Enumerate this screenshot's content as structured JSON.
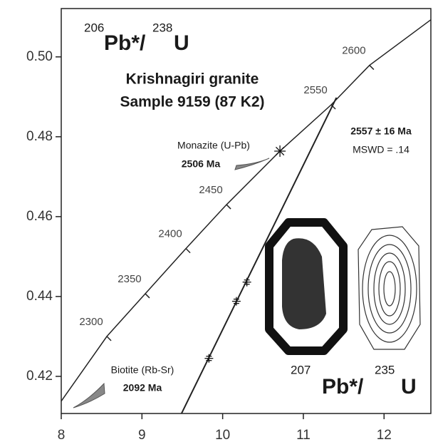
{
  "chart_data": {
    "type": "concordia",
    "title": "Krishnagiri granite",
    "subtitle": "Sample 9159 (87 K2)",
    "y_label": {
      "sup1": "206",
      "text1": "Pb*/",
      "sup2": "238",
      "text2": "U"
    },
    "x_label": {
      "sup1": "207",
      "text1": "Pb*/",
      "sup2": "235",
      "text2": "U"
    },
    "xlim": [
      8,
      12.58
    ],
    "ylim": [
      0.4107,
      0.5121
    ],
    "xticks": [
      8,
      9,
      10,
      11,
      12
    ],
    "yticks": [
      {
        "value": 0.42,
        "label": "0.42"
      },
      {
        "value": 0.44,
        "label": "0.44"
      },
      {
        "value": 0.46,
        "label": "0.46"
      },
      {
        "value": 0.48,
        "label": "0.48"
      },
      {
        "value": 0.5,
        "label": "0.50"
      }
    ],
    "concordia": {
      "x": [
        8.0,
        8.565,
        9.041,
        9.545,
        10.048,
        10.71,
        11.345,
        11.82,
        12.58
      ],
      "y": [
        0.4138,
        0.43,
        0.4407,
        0.452,
        0.463,
        0.4764,
        0.488,
        0.4979,
        0.5093
      ]
    },
    "age_ticks": [
      {
        "age": 2300,
        "x": 8.565,
        "y": 0.43
      },
      {
        "age": 2350,
        "x": 9.041,
        "y": 0.4407
      },
      {
        "age": 2400,
        "x": 9.545,
        "y": 0.452
      },
      {
        "age": 2450,
        "x": 10.048,
        "y": 0.463
      },
      {
        "age": 2550,
        "x": 11.345,
        "y": 0.488
      },
      {
        "age": 2600,
        "x": 11.82,
        "y": 0.4979
      }
    ],
    "discordia": {
      "x": [
        9.49,
        11.41
      ],
      "y": [
        0.4107,
        0.4898
      ]
    },
    "points": {
      "x": [
        9.83,
        10.17,
        10.3
      ],
      "y": [
        0.4245,
        0.4388,
        0.4436
      ]
    },
    "monazite": {
      "x": 10.71,
      "y": 0.4764,
      "label": "Monazite (U-Pb)",
      "age": "2506 Ma"
    },
    "biotite": {
      "label": "Biotite (Rb-Sr)",
      "age": "2092 Ma"
    },
    "intercept": {
      "age": "2557 ± 16 Ma",
      "mswd": "MSWD = .14"
    }
  }
}
